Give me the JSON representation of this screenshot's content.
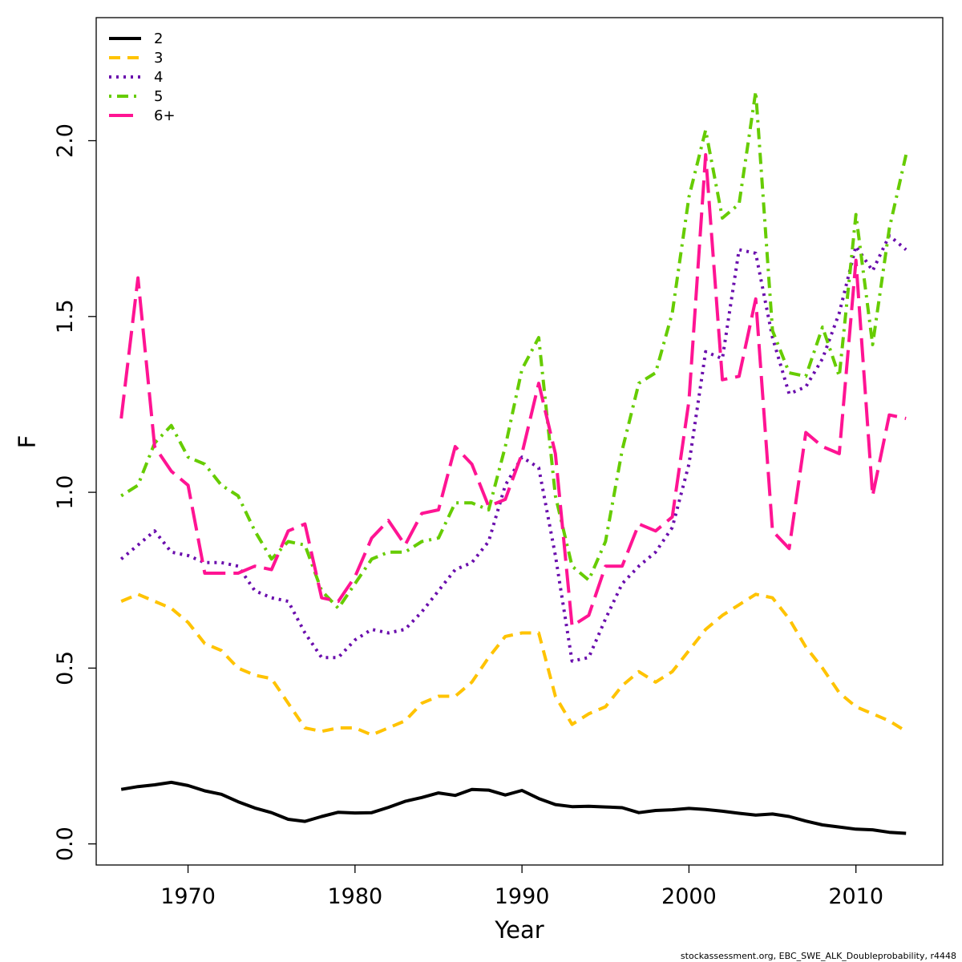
{
  "chart_data": {
    "type": "line",
    "title": "",
    "xlabel": "Year",
    "ylabel": "F",
    "xlim": [
      1964.5,
      2015.2
    ],
    "ylim": [
      -0.06,
      2.35
    ],
    "xticks": [
      1970,
      1980,
      1990,
      2000,
      2010
    ],
    "yticks": [
      0.0,
      0.5,
      1.0,
      1.5,
      2.0
    ],
    "ytick_labels": [
      "0.0",
      "0.5",
      "1.0",
      "1.5",
      "2.0"
    ],
    "grid": false,
    "legend_position": "top-left",
    "x": [
      1966,
      1967,
      1968,
      1969,
      1970,
      1971,
      1972,
      1973,
      1974,
      1975,
      1976,
      1977,
      1978,
      1979,
      1980,
      1981,
      1982,
      1983,
      1984,
      1985,
      1986,
      1987,
      1988,
      1989,
      1990,
      1991,
      1992,
      1993,
      1994,
      1995,
      1996,
      1997,
      1998,
      1999,
      2000,
      2001,
      2002,
      2003,
      2004,
      2005,
      2006,
      2007,
      2008,
      2009,
      2010,
      2011,
      2012,
      2013
    ],
    "series": [
      {
        "name": "2",
        "color": "#000000",
        "dash": "solid",
        "values": [
          0.155,
          0.163,
          0.168,
          0.175,
          0.166,
          0.151,
          0.141,
          0.12,
          0.102,
          0.089,
          0.07,
          0.064,
          0.078,
          0.09,
          0.088,
          0.089,
          0.104,
          0.121,
          0.132,
          0.145,
          0.138,
          0.155,
          0.153,
          0.139,
          0.152,
          0.129,
          0.112,
          0.106,
          0.107,
          0.105,
          0.103,
          0.089,
          0.095,
          0.097,
          0.101,
          0.098,
          0.093,
          0.087,
          0.082,
          0.085,
          0.078,
          0.065,
          0.054,
          0.048,
          0.042,
          0.04,
          0.033,
          0.03
        ]
      },
      {
        "name": "3",
        "color": "#FFC300",
        "dash": "dashed",
        "values": [
          0.69,
          0.71,
          0.69,
          0.67,
          0.63,
          0.57,
          0.55,
          0.5,
          0.48,
          0.47,
          0.4,
          0.33,
          0.32,
          0.33,
          0.33,
          0.31,
          0.33,
          0.35,
          0.4,
          0.42,
          0.42,
          0.46,
          0.53,
          0.59,
          0.6,
          0.6,
          0.42,
          0.34,
          0.37,
          0.39,
          0.45,
          0.49,
          0.46,
          0.49,
          0.55,
          0.61,
          0.65,
          0.68,
          0.71,
          0.7,
          0.64,
          0.56,
          0.5,
          0.43,
          0.39,
          0.37,
          0.35,
          0.32
        ]
      },
      {
        "name": "4",
        "color": "#6A0DAD",
        "dash": "dotted",
        "values": [
          0.81,
          0.85,
          0.89,
          0.83,
          0.82,
          0.8,
          0.8,
          0.79,
          0.72,
          0.7,
          0.69,
          0.6,
          0.53,
          0.53,
          0.58,
          0.61,
          0.6,
          0.61,
          0.66,
          0.72,
          0.78,
          0.8,
          0.86,
          1.02,
          1.1,
          1.07,
          0.82,
          0.52,
          0.53,
          0.64,
          0.74,
          0.79,
          0.83,
          0.9,
          1.08,
          1.4,
          1.38,
          1.69,
          1.68,
          1.44,
          1.28,
          1.3,
          1.38,
          1.51,
          1.7,
          1.63,
          1.73,
          1.69
        ]
      },
      {
        "name": "5",
        "color": "#66CC00",
        "dash": "dashdot",
        "values": [
          0.99,
          1.02,
          1.14,
          1.19,
          1.1,
          1.08,
          1.02,
          0.99,
          0.89,
          0.81,
          0.86,
          0.85,
          0.72,
          0.67,
          0.74,
          0.81,
          0.83,
          0.83,
          0.86,
          0.87,
          0.97,
          0.97,
          0.95,
          1.13,
          1.35,
          1.44,
          0.99,
          0.79,
          0.75,
          0.86,
          1.12,
          1.31,
          1.34,
          1.51,
          1.84,
          2.03,
          1.78,
          1.82,
          2.14,
          1.46,
          1.34,
          1.33,
          1.47,
          1.33,
          1.79,
          1.42,
          1.75,
          1.96
        ]
      },
      {
        "name": "6+",
        "color": "#FF1493",
        "dash": "longdash",
        "values": [
          1.21,
          1.61,
          1.13,
          1.06,
          1.02,
          0.77,
          0.77,
          0.77,
          0.79,
          0.78,
          0.89,
          0.91,
          0.7,
          0.69,
          0.76,
          0.87,
          0.92,
          0.85,
          0.94,
          0.95,
          1.13,
          1.08,
          0.96,
          0.98,
          1.11,
          1.31,
          1.11,
          0.62,
          0.65,
          0.79,
          0.79,
          0.91,
          0.89,
          0.93,
          1.26,
          1.96,
          1.32,
          1.33,
          1.55,
          0.89,
          0.84,
          1.17,
          1.13,
          1.11,
          1.66,
          0.99,
          1.22,
          1.21
        ]
      }
    ]
  },
  "caption": "stockassessment.org, EBC_SWE_ALK_Doubleprobability, r4448"
}
